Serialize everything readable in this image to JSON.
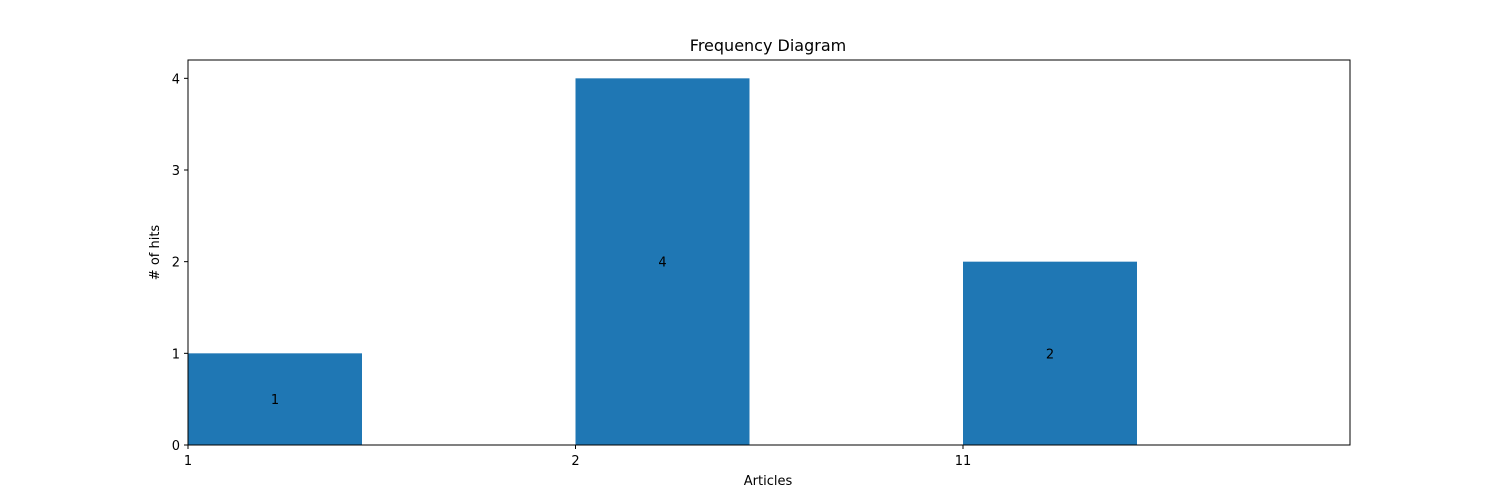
{
  "chart_data": {
    "type": "bar",
    "title": "Frequency Diagram",
    "xlabel": "Articles",
    "ylabel": "# of hits",
    "categories": [
      "1",
      "2",
      "11"
    ],
    "values": [
      1,
      4,
      2
    ],
    "value_labels": [
      "1",
      "4",
      "2"
    ],
    "ylim": [
      0,
      4.2
    ],
    "yticks": [
      "0",
      "1",
      "2",
      "3",
      "4"
    ],
    "grid": false,
    "bar_color": "#1f77b4",
    "axis_color": "#000000"
  }
}
